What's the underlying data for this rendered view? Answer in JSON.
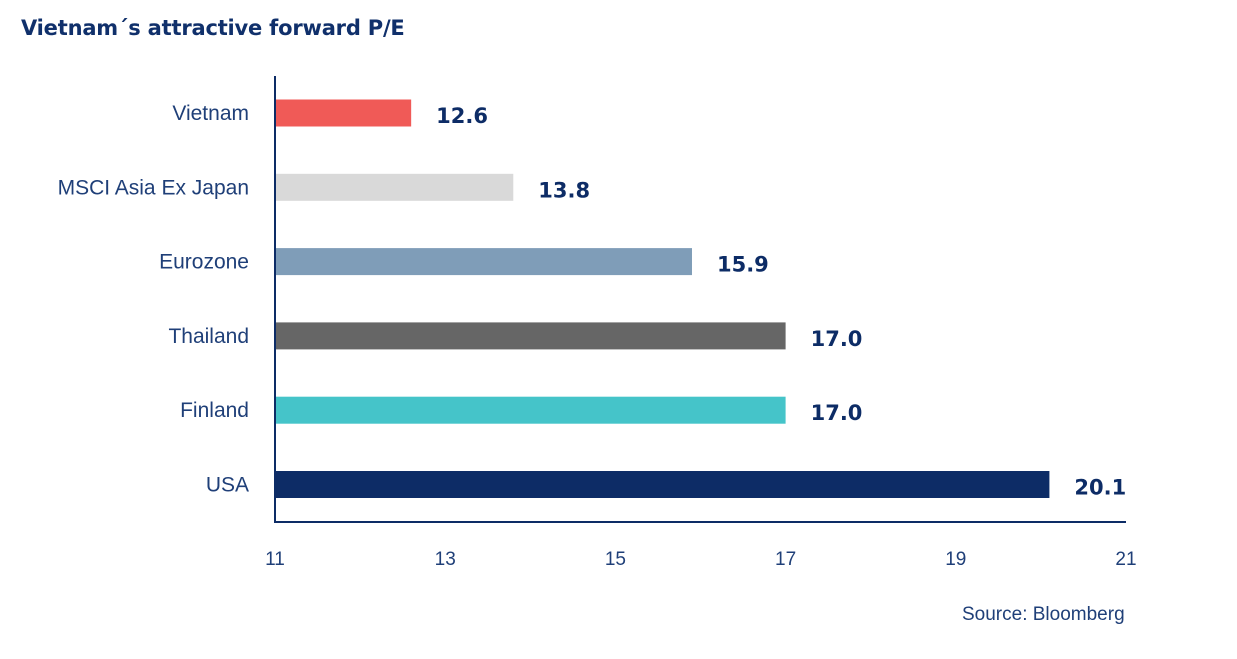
{
  "title": "Vietnam´s attractive forward P/E",
  "source": "Source: Bloomberg",
  "chart_data": {
    "type": "bar",
    "orientation": "horizontal",
    "title": "Vietnam´s attractive forward P/E",
    "xlabel": "",
    "ylabel": "",
    "categories": [
      "Vietnam",
      "MSCI Asia Ex Japan",
      "Eurozone",
      "Thailand",
      "Finland",
      "USA"
    ],
    "values": [
      12.6,
      13.8,
      15.9,
      17.0,
      17.0,
      20.1
    ],
    "value_labels": [
      "12.6",
      "13.8",
      "15.9",
      "17.0",
      "17.0",
      "20.1"
    ],
    "colors": [
      "#f05a57",
      "#d9d9d9",
      "#7f9db8",
      "#666666",
      "#45c4c9",
      "#0d2c66"
    ],
    "xlim": [
      11,
      21
    ],
    "xticks": [
      11,
      13,
      15,
      17,
      19,
      21
    ],
    "xtick_labels": [
      "11",
      "13",
      "15",
      "17",
      "19",
      "21"
    ],
    "grid": false,
    "legend": "none"
  }
}
